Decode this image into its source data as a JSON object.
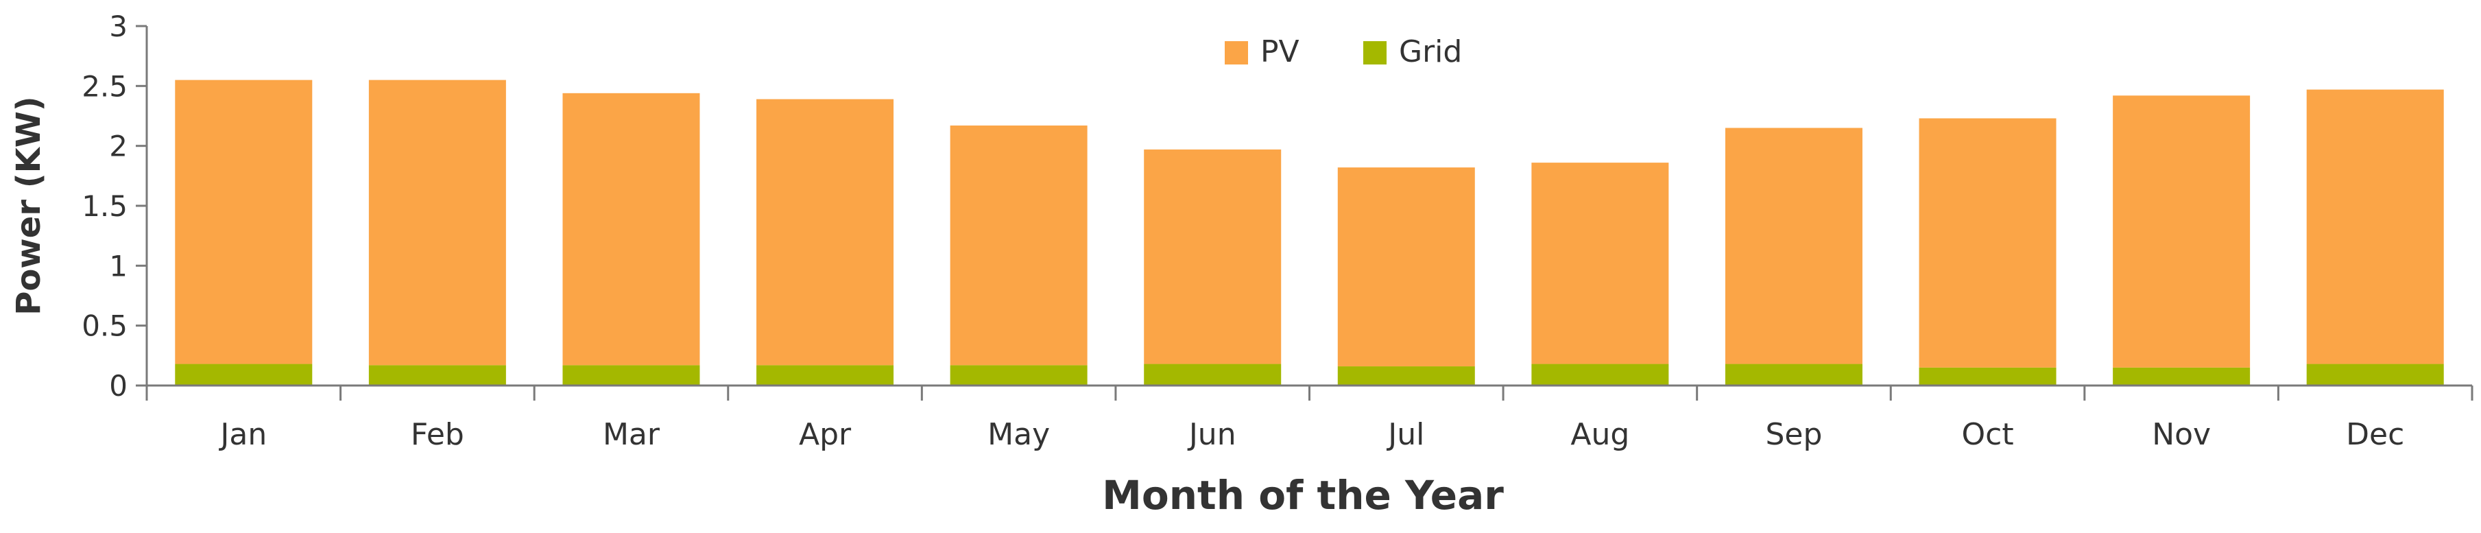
{
  "chart_data": {
    "type": "bar",
    "stacked": true,
    "title": "",
    "xlabel": "Month of the Year",
    "ylabel": "Power (KW)",
    "ylim": [
      0,
      3
    ],
    "yticks": [
      "0",
      "0.5",
      "1",
      "1.5",
      "2",
      "2.5",
      "3"
    ],
    "categories": [
      "Jan",
      "Feb",
      "Mar",
      "Apr",
      "May",
      "Jun",
      "Jul",
      "Aug",
      "Sep",
      "Oct",
      "Nov",
      "Dec"
    ],
    "series": [
      {
        "name": "Grid",
        "color": "#a4b800",
        "values": [
          0.18,
          0.17,
          0.17,
          0.17,
          0.17,
          0.18,
          0.16,
          0.18,
          0.18,
          0.15,
          0.15,
          0.18
        ]
      },
      {
        "name": "PV",
        "color": "#fba547",
        "values": [
          2.37,
          2.38,
          2.27,
          2.22,
          2.0,
          1.79,
          1.66,
          1.68,
          1.97,
          2.08,
          2.27,
          2.29
        ]
      }
    ],
    "legend": {
      "position": "top-center",
      "items": [
        {
          "label": "PV",
          "color": "#fba547"
        },
        {
          "label": "Grid",
          "color": "#a4b800"
        }
      ]
    },
    "grid": false
  }
}
